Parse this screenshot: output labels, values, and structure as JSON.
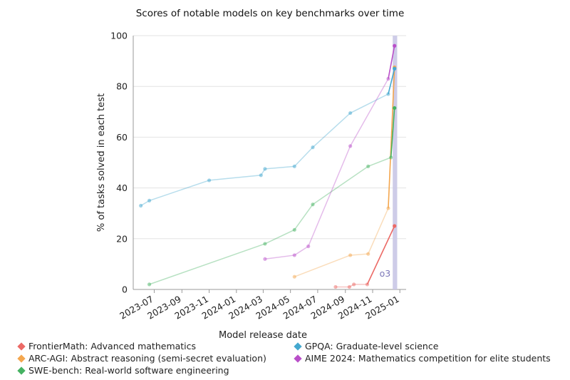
{
  "chart_data": {
    "type": "line",
    "title": "Scores of notable models on key benchmarks over time",
    "xlabel": "Model release date",
    "ylabel": "% of tasks solved in each test",
    "ylim": [
      0,
      100
    ],
    "xlim": [
      "2023-05-15",
      "2025-01-15"
    ],
    "yticks": [
      0,
      20,
      40,
      60,
      80,
      100
    ],
    "xticks": [
      "2023-07",
      "2023-09",
      "2023-11",
      "2024-01",
      "2024-03",
      "2024-05",
      "2024-07",
      "2024-09",
      "2024-11",
      "2025-01"
    ],
    "grid": "horizontal",
    "highlight": {
      "from": "2024-12-16",
      "to": "2024-12-26",
      "label": "o3",
      "color": "#c9c6e6"
    },
    "legend_position": "bottom",
    "series": [
      {
        "name": "FrontierMath: Advanced mathematics",
        "color": "#ec6a66",
        "points": [
          [
            "2024-08-10",
            1
          ],
          [
            "2024-09-10",
            1
          ],
          [
            "2024-09-20",
            2
          ],
          [
            "2024-10-20",
            2
          ],
          [
            "2024-12-20",
            25
          ]
        ]
      },
      {
        "name": "ARC-AGI: Abstract reasoning (semi-secret evaluation)",
        "color": "#f4a74f",
        "points": [
          [
            "2024-05-10",
            5
          ],
          [
            "2024-09-12",
            13.5
          ],
          [
            "2024-10-22",
            14
          ],
          [
            "2024-12-06",
            32
          ],
          [
            "2024-12-20",
            87.5
          ]
        ]
      },
      {
        "name": "SWE-bench: Real-world software engineering",
        "color": "#45b262",
        "points": [
          [
            "2023-06-20",
            2
          ],
          [
            "2024-03-05",
            18
          ],
          [
            "2024-05-10",
            23.5
          ],
          [
            "2024-06-20",
            33.5
          ],
          [
            "2024-10-22",
            48.5
          ],
          [
            "2024-12-12",
            52
          ],
          [
            "2024-12-20",
            71.5
          ]
        ]
      },
      {
        "name": "GPQA: Graduate-level science",
        "color": "#44a8cf",
        "points": [
          [
            "2023-06-01",
            33
          ],
          [
            "2023-06-20",
            35
          ],
          [
            "2023-11-01",
            43
          ],
          [
            "2024-02-25",
            45
          ],
          [
            "2024-03-05",
            47.5
          ],
          [
            "2024-05-10",
            48.5
          ],
          [
            "2024-06-20",
            56
          ],
          [
            "2024-09-12",
            69.5
          ],
          [
            "2024-12-06",
            77
          ],
          [
            "2024-12-20",
            87
          ]
        ]
      },
      {
        "name": "AIME 2024: Mathematics competition for elite students",
        "color": "#b94fc9",
        "points": [
          [
            "2024-03-05",
            12
          ],
          [
            "2024-05-10",
            13.5
          ],
          [
            "2024-06-10",
            17
          ],
          [
            "2024-09-12",
            56.5
          ],
          [
            "2024-12-06",
            83
          ],
          [
            "2024-12-20",
            96
          ]
        ]
      }
    ]
  }
}
